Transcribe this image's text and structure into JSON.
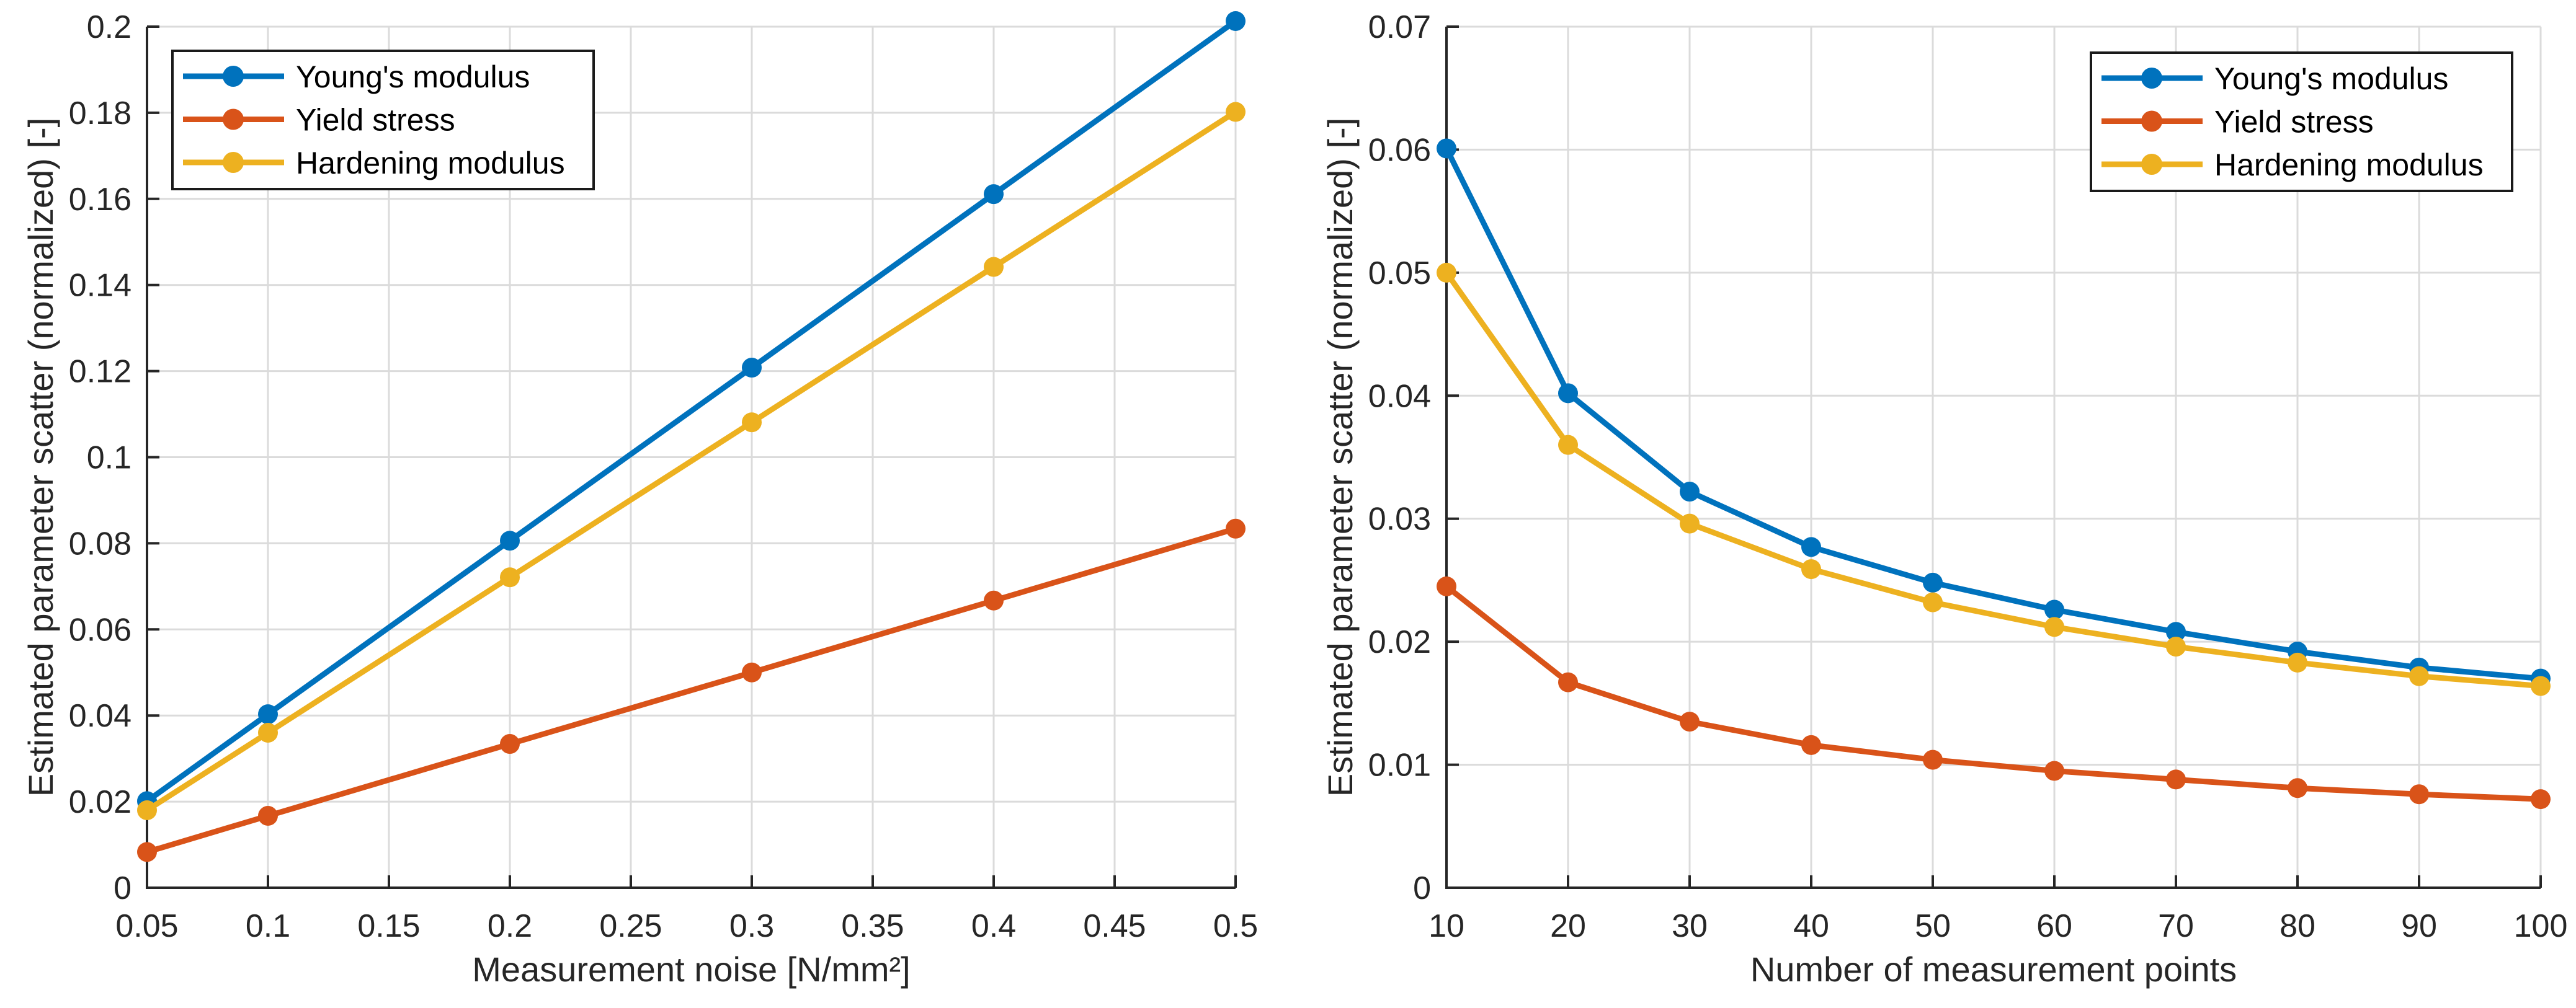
{
  "page": {
    "background": "#ffffff"
  },
  "colors": {
    "axis": "#262626",
    "grid": "#dbdbdb",
    "tick_text": "#262626",
    "legend_border": "#1a1a1a",
    "legend_background": "#ffffff",
    "young_modulus": "#0072BD",
    "yield_stress": "#D95319",
    "hardening_modulus": "#EDB120"
  },
  "chart_data": [
    {
      "id": "noise-sensitivity",
      "type": "line",
      "title": "",
      "xlabel": "Measurement noise [N/mm²]",
      "ylabel": "Estimated parameter scatter (normalized) [-]",
      "grid": true,
      "legend_position": "northwest",
      "xlim": [
        0.05,
        0.5
      ],
      "ylim": [
        0,
        0.2
      ],
      "x": [
        0.05,
        0.1,
        0.2,
        0.3,
        0.4,
        0.5
      ],
      "xticks": [
        0.05,
        0.1,
        0.15,
        0.2,
        0.25,
        0.3,
        0.35,
        0.4,
        0.45,
        0.5
      ],
      "xtick_labels": [
        "0.05",
        "0.1",
        "0.15",
        "0.2",
        "0.25",
        "0.3",
        "0.35",
        "0.4",
        "0.45",
        "0.5"
      ],
      "yticks": [
        0,
        0.02,
        0.04,
        0.06,
        0.08,
        0.1,
        0.12,
        0.14,
        0.16,
        0.18,
        0.2
      ],
      "ytick_labels": [
        "0",
        "0.02",
        "0.04",
        "0.06",
        "0.08",
        "0.1",
        "0.12",
        "0.14",
        "0.16",
        "0.18",
        "0.2"
      ],
      "series": [
        {
          "name": "Young's modulus",
          "color": "#0072BD",
          "marker": "circle",
          "values": [
            0.0201,
            0.0403,
            0.0806,
            0.1208,
            0.1611,
            0.2013
          ]
        },
        {
          "name": "Yield stress",
          "color": "#D95319",
          "marker": "circle",
          "values": [
            0.0083,
            0.0167,
            0.0334,
            0.05,
            0.0667,
            0.0834
          ]
        },
        {
          "name": "Hardening modulus",
          "color": "#EDB120",
          "marker": "circle",
          "values": [
            0.018,
            0.036,
            0.0721,
            0.1081,
            0.1442,
            0.1802
          ]
        }
      ]
    },
    {
      "id": "measurement-points-sensitivity",
      "type": "line",
      "title": "",
      "xlabel": "Number of measurement points",
      "ylabel": "Estimated parameter scatter (normalized) [-]",
      "grid": true,
      "legend_position": "northeast",
      "xlim": [
        10,
        100
      ],
      "ylim": [
        0,
        0.07
      ],
      "x": [
        10,
        20,
        30,
        40,
        50,
        60,
        70,
        80,
        90,
        100
      ],
      "xticks": [
        10,
        20,
        30,
        40,
        50,
        60,
        70,
        80,
        90,
        100
      ],
      "xtick_labels": [
        "10",
        "20",
        "30",
        "40",
        "50",
        "60",
        "70",
        "80",
        "90",
        "100"
      ],
      "yticks": [
        0,
        0.01,
        0.02,
        0.03,
        0.04,
        0.05,
        0.06,
        0.07
      ],
      "ytick_labels": [
        "0",
        "0.01",
        "0.02",
        "0.03",
        "0.04",
        "0.05",
        "0.06",
        "0.07"
      ],
      "series": [
        {
          "name": "Young's modulus",
          "color": "#0072BD",
          "marker": "circle",
          "values": [
            0.0601,
            0.0402,
            0.0322,
            0.0277,
            0.0248,
            0.0226,
            0.0208,
            0.0192,
            0.0179,
            0.017
          ]
        },
        {
          "name": "Yield stress",
          "color": "#D95319",
          "marker": "circle",
          "values": [
            0.0245,
            0.0167,
            0.0135,
            0.0116,
            0.0104,
            0.0095,
            0.0088,
            0.0081,
            0.0076,
            0.0072
          ]
        },
        {
          "name": "Hardening modulus",
          "color": "#EDB120",
          "marker": "circle",
          "values": [
            0.05,
            0.036,
            0.0296,
            0.0259,
            0.0232,
            0.0212,
            0.0196,
            0.0183,
            0.0172,
            0.0164
          ]
        }
      ]
    }
  ]
}
